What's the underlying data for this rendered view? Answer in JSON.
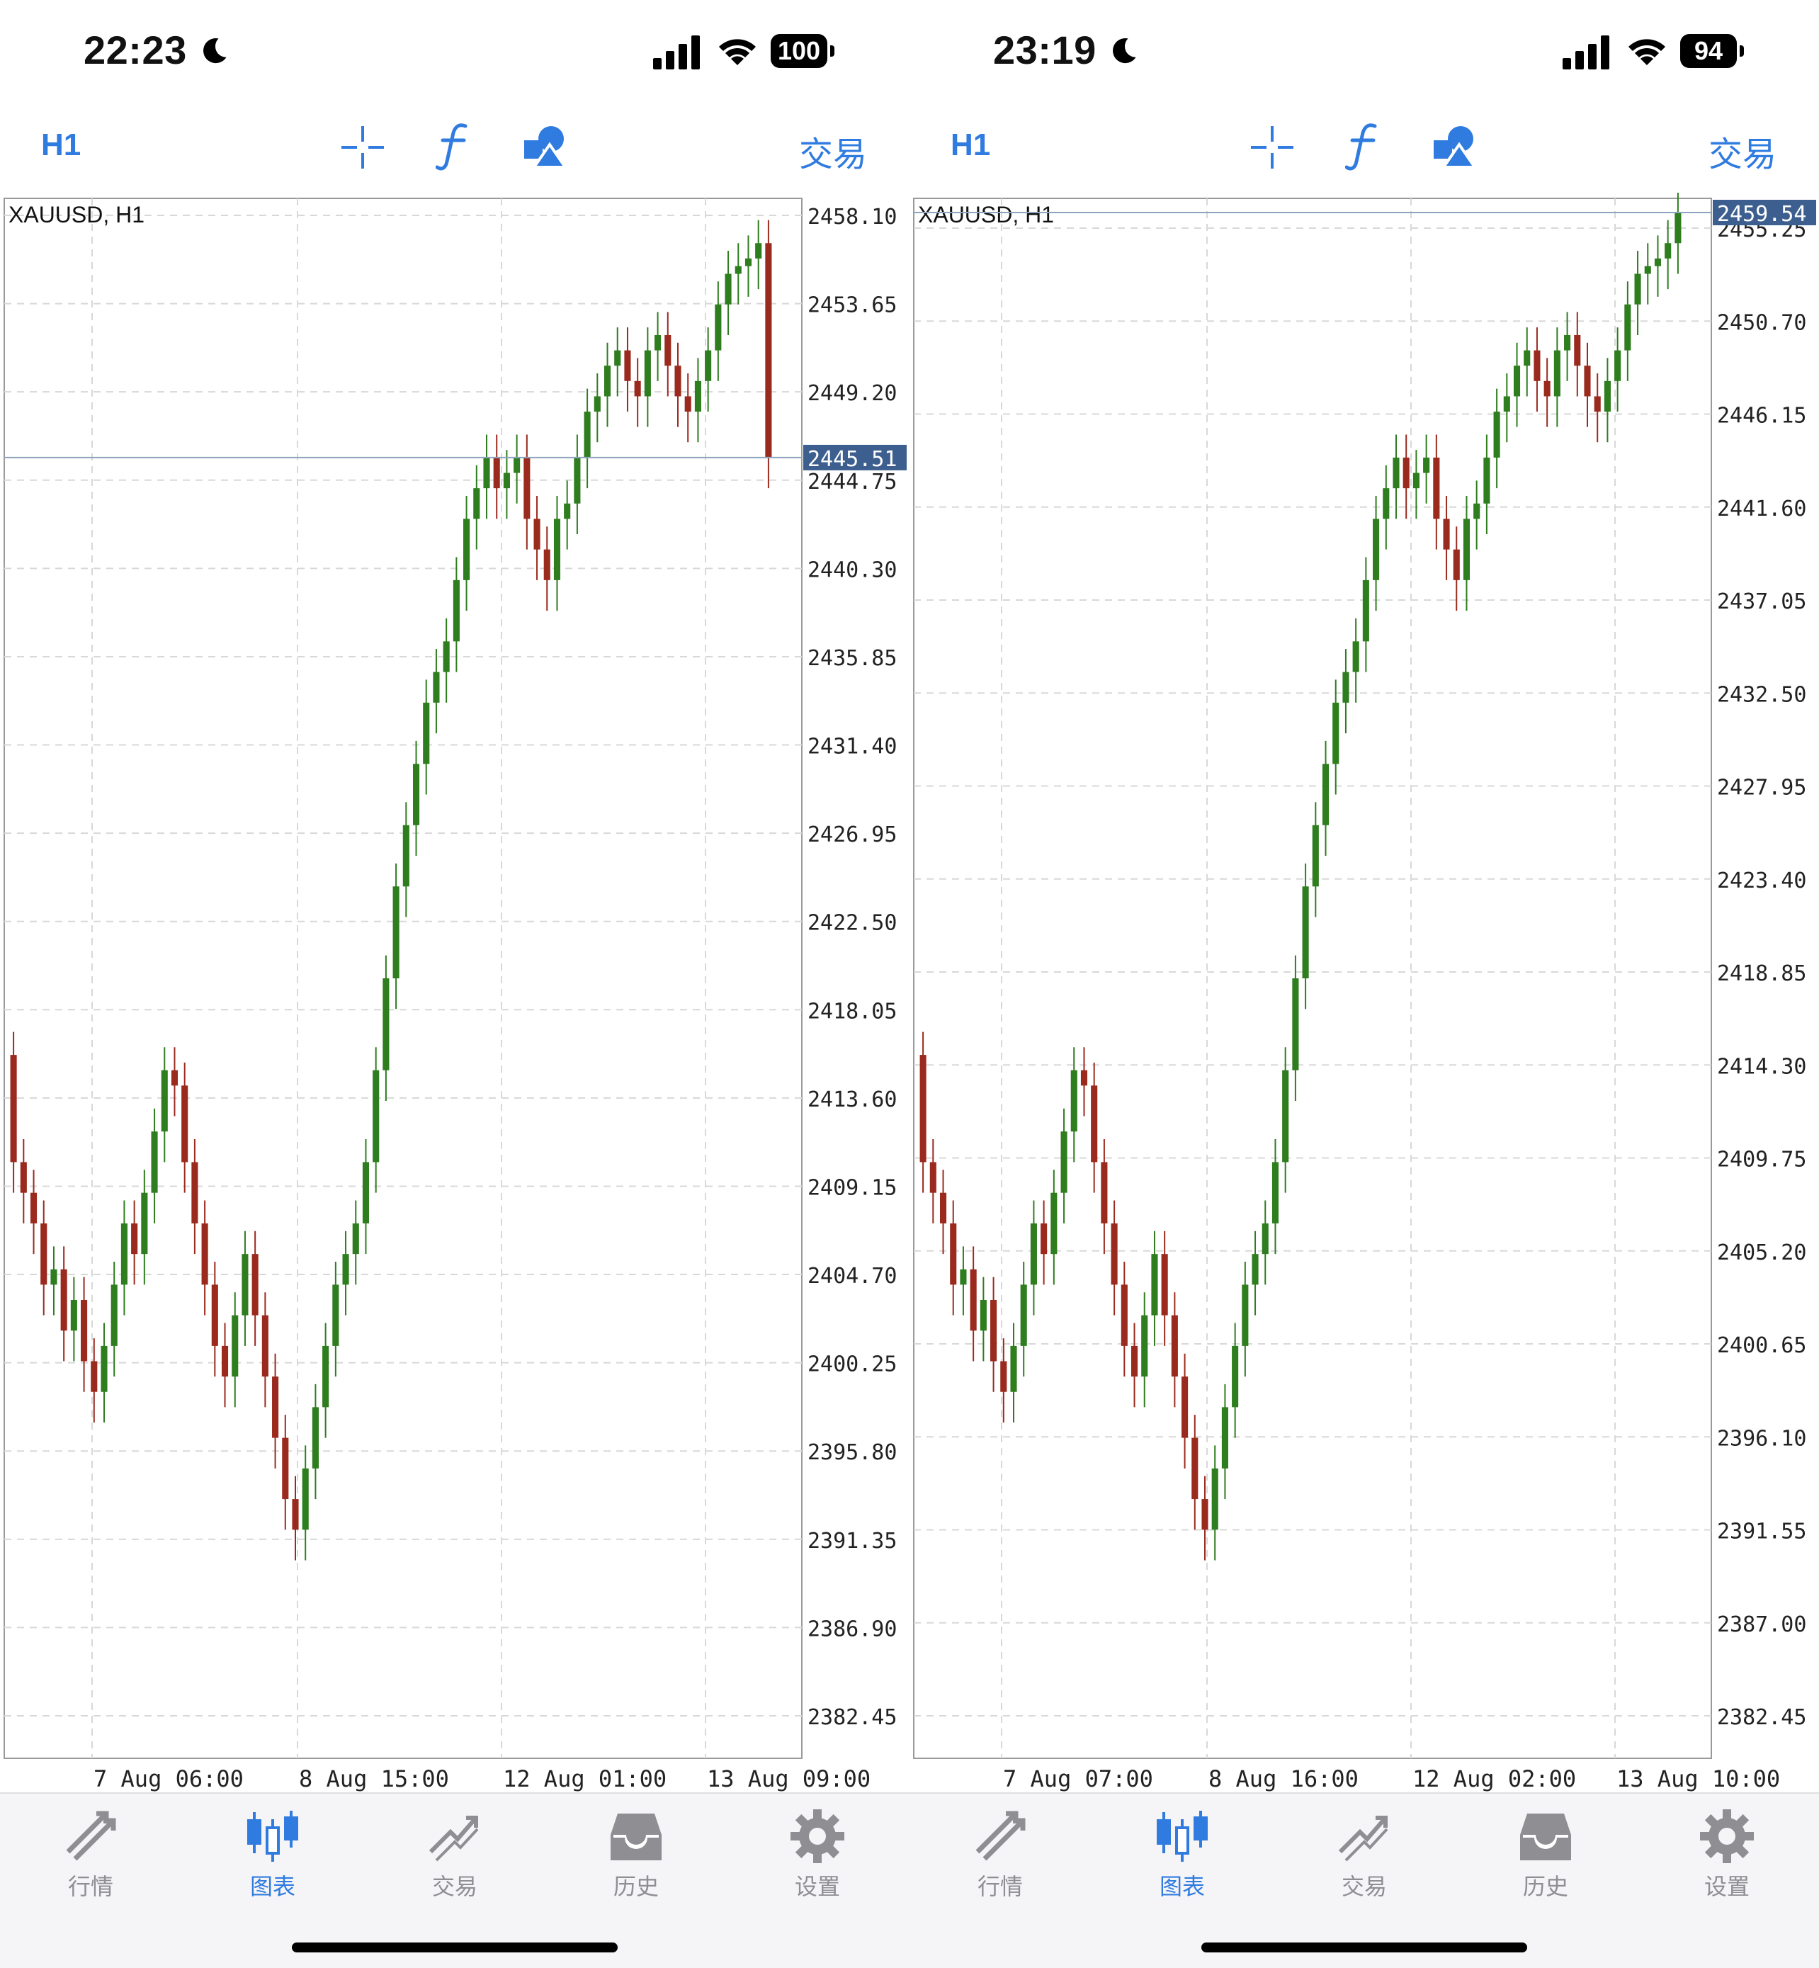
{
  "phones": [
    {
      "status": {
        "time": "22:23",
        "battery": "100"
      },
      "toolbar": {
        "timeframe": "H1",
        "trade": "交易"
      },
      "chart": {
        "title": "XAUUSD, H1",
        "current_price": "2445.51",
        "price_labels": [
          "2458.10",
          "2453.65",
          "2449.20",
          "2444.75",
          "2440.30",
          "2435.85",
          "2431.40",
          "2426.95",
          "2422.50",
          "2418.05",
          "2413.60",
          "2409.15",
          "2404.70",
          "2400.25",
          "2395.80",
          "2391.35",
          "2386.90",
          "2382.45"
        ],
        "time_labels": [
          "7 Aug 06:00",
          "8 Aug 15:00",
          "12 Aug 01:00",
          "13 Aug 09:00"
        ]
      },
      "tabs": [
        "行情",
        "图表",
        "交易",
        "历史",
        "设置"
      ],
      "active_tab": "图表"
    },
    {
      "status": {
        "time": "23:19",
        "battery": "94"
      },
      "toolbar": {
        "timeframe": "H1",
        "trade": "交易"
      },
      "chart": {
        "title": "XAUUSD, H1",
        "current_price": "2459.54",
        "price_labels": [
          "2455.25",
          "2450.70",
          "2446.15",
          "2441.60",
          "2437.05",
          "2432.50",
          "2427.95",
          "2423.40",
          "2418.85",
          "2414.30",
          "2409.75",
          "2405.20",
          "2400.65",
          "2396.10",
          "2391.55",
          "2387.00",
          "2382.45"
        ],
        "time_labels": [
          "7 Aug 07:00",
          "8 Aug 16:00",
          "12 Aug 02:00",
          "13 Aug 10:00"
        ]
      },
      "tabs": [
        "行情",
        "图表",
        "交易",
        "历史",
        "设置"
      ],
      "active_tab": "图表"
    }
  ],
  "colors": {
    "bull": "#2e7d1e",
    "bear": "#9b2a1e",
    "accent": "#2f7be0",
    "price_tag": "#3d5f8f",
    "grid": "#d8d8d8"
  },
  "icons": [
    "moon-icon",
    "signal-icon",
    "wifi-icon",
    "battery-icon",
    "crosshair-icon",
    "function-icon",
    "objects-icon",
    "quotes-icon",
    "chart-icon",
    "trade-icon",
    "history-icon",
    "settings-icon"
  ]
}
